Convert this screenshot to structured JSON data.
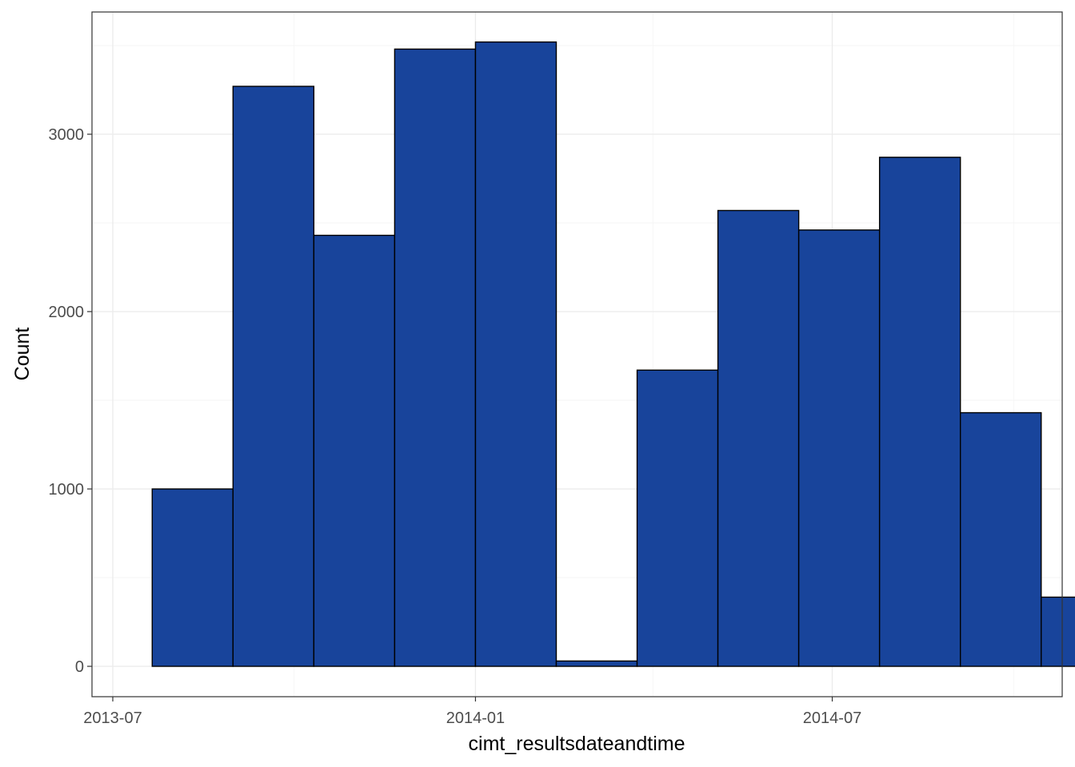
{
  "chart_data": {
    "type": "bar",
    "subtype": "histogram",
    "xlabel": "cimt_resultsdateandtime",
    "ylabel": "Count",
    "x_ticks": [
      "2013-07",
      "2014-01",
      "2014-07"
    ],
    "y_ticks": [
      0,
      1000,
      2000,
      3000
    ],
    "xlim": [
      "2013-07-01",
      "2014-10-21"
    ],
    "ylim": [
      -170,
      3650
    ],
    "bin_edges": [
      "2013-07-21",
      "2013-08-31",
      "2013-10-11",
      "2013-11-21",
      "2014-01-01",
      "2014-02-11",
      "2014-03-24",
      "2014-05-04",
      "2014-06-14",
      "2014-07-25",
      "2014-09-04",
      "2014-10-15",
      "2014-11-25"
    ],
    "values": [
      1000,
      3270,
      2430,
      3480,
      3520,
      30,
      1670,
      2570,
      2460,
      2870,
      1430,
      390
    ],
    "bar_fill": "#18449B",
    "bar_outline": "#000000",
    "grid": true,
    "theme": "bw"
  }
}
